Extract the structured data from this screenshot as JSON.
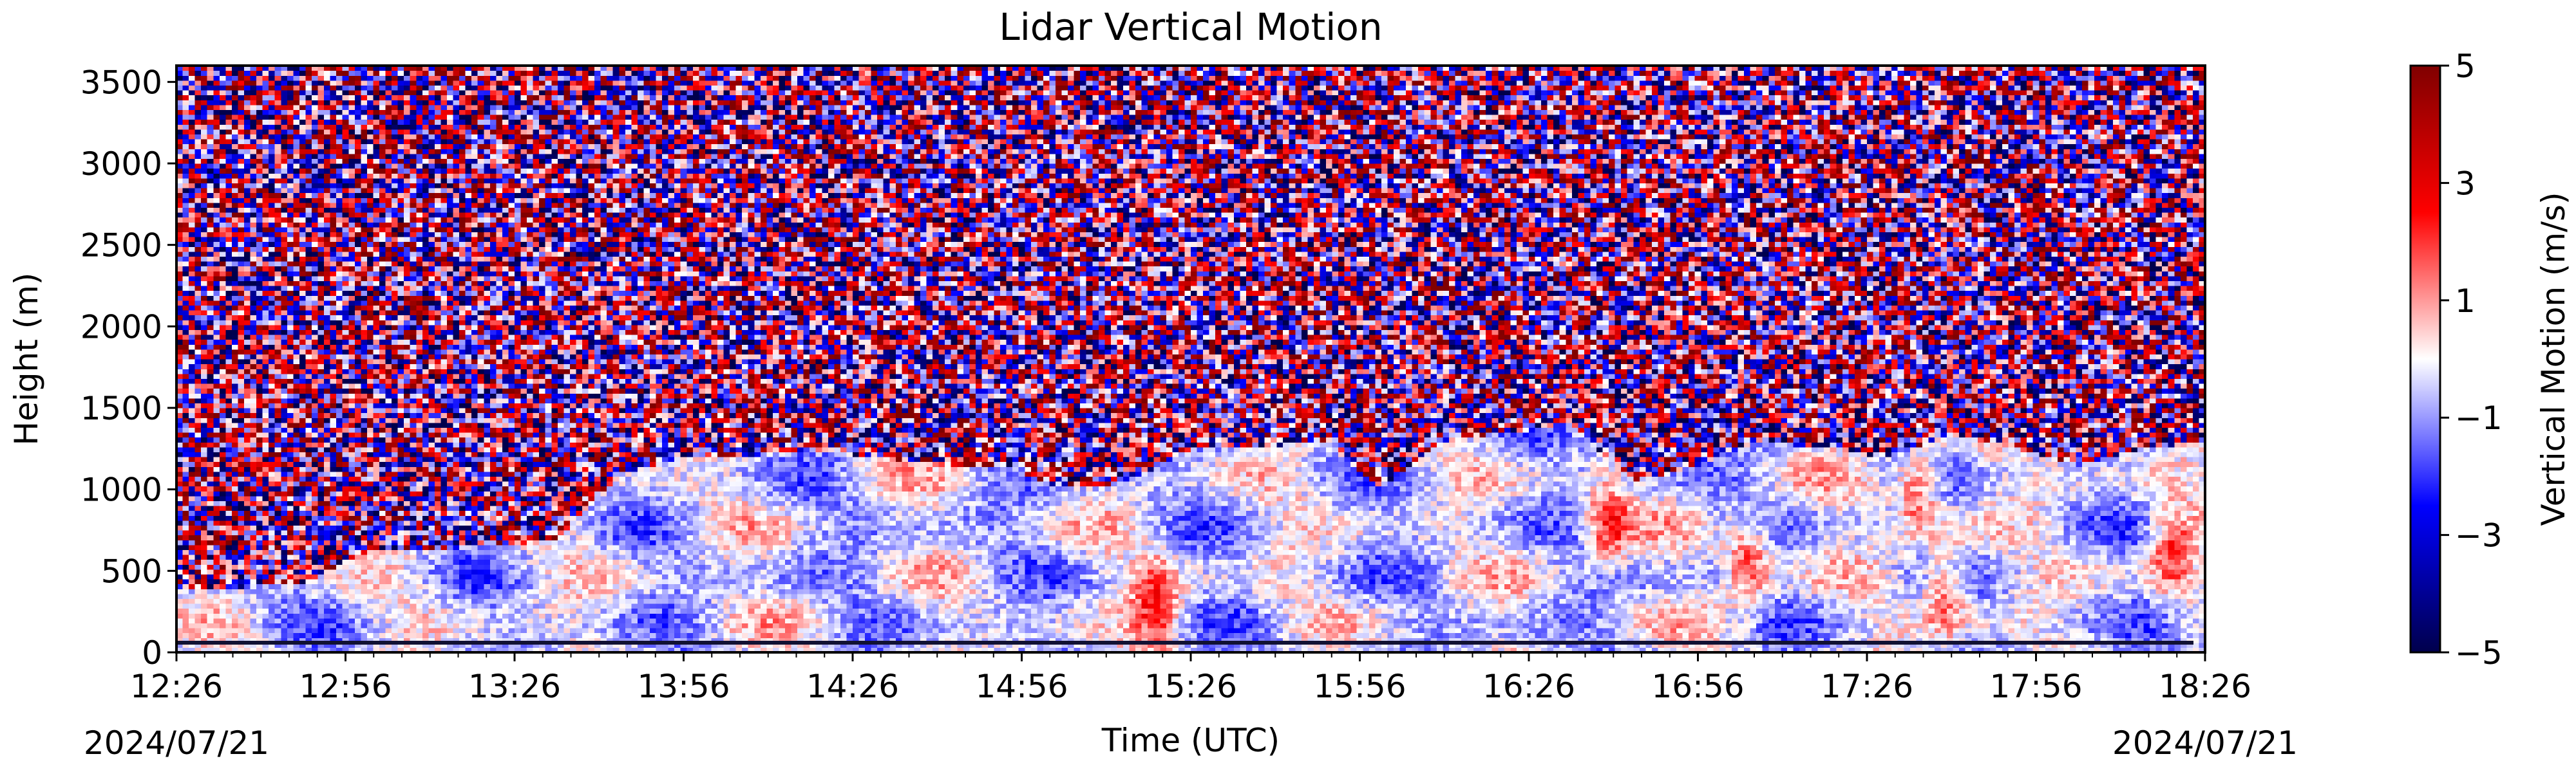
{
  "chart_data": {
    "type": "heatmap",
    "title": "Lidar Vertical Motion",
    "xlabel": "Time (UTC)",
    "ylabel": "Height (m)",
    "x_start_label": "2024/07/21",
    "x_end_label": "2024/07/21",
    "x_ticks": [
      "12:26",
      "12:56",
      "13:26",
      "13:56",
      "14:26",
      "14:56",
      "15:26",
      "15:56",
      "16:26",
      "16:56",
      "17:26",
      "17:56",
      "18:26"
    ],
    "y_ticks": [
      0,
      500,
      1000,
      1500,
      2000,
      2500,
      3000,
      3500
    ],
    "ylim": [
      0,
      3600
    ],
    "colorbar": {
      "label": "Vertical Motion (m/s)",
      "ticks": [
        5,
        3,
        1,
        -1,
        -3,
        -5
      ],
      "range": [
        -5,
        5
      ],
      "colormap": "seismic",
      "colors": [
        "#00004c",
        "#0000ff",
        "#ffffff",
        "#ff0000",
        "#800000"
      ]
    },
    "boundary_layer_top_m": [
      400,
      400,
      430,
      620,
      640,
      650,
      700,
      1100,
      1200,
      1200,
      1250,
      1200,
      1150,
      1150,
      1000,
      1050,
      1250,
      1250,
      1300,
      1000,
      1300,
      1350,
      1400,
      1050,
      1150,
      1300,
      1250,
      1200,
      1350,
      1250,
      1150,
      1250,
      1300
    ],
    "strong_updraft_cores": [
      {
        "time": "15:20",
        "height_m": 300
      },
      {
        "time": "16:40",
        "height_m": 800
      },
      {
        "time": "17:05",
        "height_m": 550
      },
      {
        "time": "17:35",
        "height_m": 1000
      },
      {
        "time": "17:40",
        "height_m": 400
      },
      {
        "time": "18:20",
        "height_m": 600
      }
    ]
  }
}
